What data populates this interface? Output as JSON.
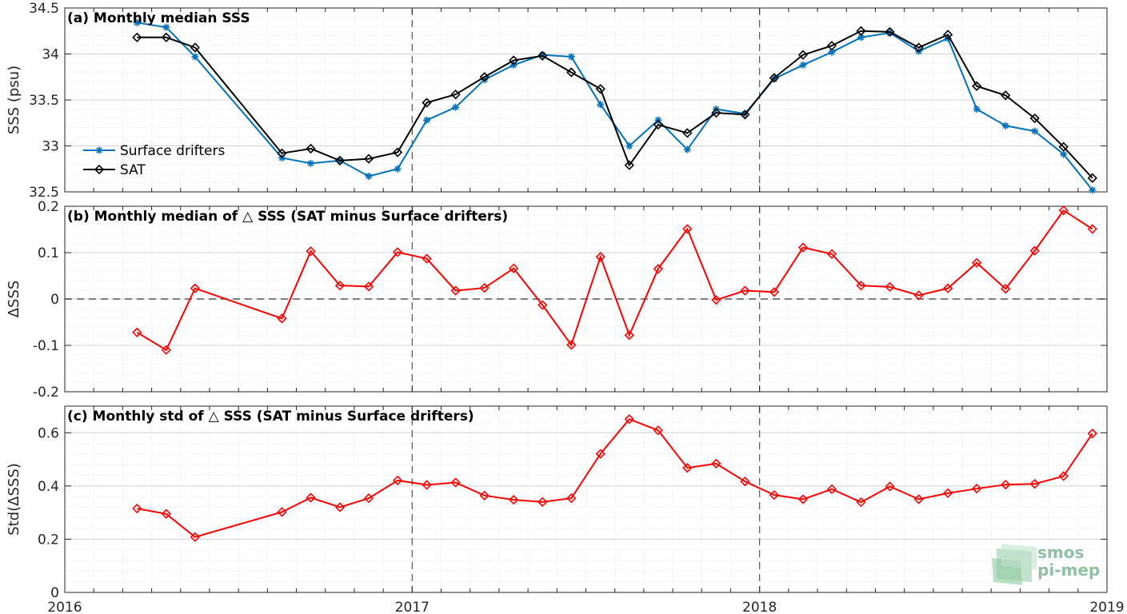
{
  "chart_data": [
    {
      "type": "line",
      "title": "(a) Monthly median SSS",
      "ylabel": "SSS (psu)",
      "xlim": [
        2016,
        2019
      ],
      "ylim": [
        32.5,
        34.5
      ],
      "yticks": [
        32.5,
        33,
        33.5,
        34,
        34.5
      ],
      "ytick_labels": [
        "32.5",
        "33",
        "33.5",
        "34",
        "34.5"
      ],
      "grid": true,
      "legend_position": "lower-left",
      "x": [
        2016.208,
        2016.292,
        2016.375,
        2016.625,
        2016.708,
        2016.792,
        2016.875,
        2016.958,
        2017.042,
        2017.125,
        2017.208,
        2017.292,
        2017.375,
        2017.458,
        2017.542,
        2017.625,
        2017.708,
        2017.792,
        2017.875,
        2017.958,
        2018.042,
        2018.125,
        2018.208,
        2018.292,
        2018.375,
        2018.458,
        2018.542,
        2018.625,
        2018.708,
        2018.792,
        2018.875,
        2018.958
      ],
      "series": [
        {
          "name": "Surface drifters",
          "color": "#0072bd",
          "marker": "star",
          "values": [
            34.34,
            34.29,
            33.97,
            32.87,
            32.81,
            32.84,
            32.67,
            32.75,
            33.28,
            33.42,
            33.72,
            33.88,
            33.99,
            33.97,
            33.45,
            33.0,
            33.28,
            32.96,
            33.4,
            33.35,
            33.73,
            33.88,
            34.02,
            34.18,
            34.23,
            34.03,
            34.17,
            33.4,
            33.22,
            33.16,
            32.91,
            32.52
          ]
        },
        {
          "name": "SAT",
          "color": "#000000",
          "marker": "diamond",
          "values": [
            34.18,
            34.18,
            34.07,
            32.92,
            32.97,
            32.84,
            32.86,
            32.93,
            33.47,
            33.56,
            33.75,
            33.93,
            33.98,
            33.8,
            33.62,
            32.79,
            33.23,
            33.14,
            33.36,
            33.34,
            33.74,
            33.99,
            34.09,
            34.25,
            34.24,
            34.07,
            34.21,
            33.65,
            33.55,
            33.3,
            32.99,
            32.65
          ]
        }
      ]
    },
    {
      "type": "line",
      "title": "(b) Monthly median of △ SSS (SAT minus Surface drifters)",
      "ylabel": "ΔSSS",
      "xlim": [
        2016,
        2019
      ],
      "ylim": [
        -0.2,
        0.2
      ],
      "yticks": [
        -0.2,
        -0.1,
        0,
        0.1,
        0.2
      ],
      "ytick_labels": [
        "-0.2",
        "-0.1",
        "0",
        "0.1",
        "0.2"
      ],
      "grid": true,
      "zero_line": true,
      "x": [
        2016.208,
        2016.292,
        2016.375,
        2016.625,
        2016.708,
        2016.792,
        2016.875,
        2016.958,
        2017.042,
        2017.125,
        2017.208,
        2017.292,
        2017.375,
        2017.458,
        2017.542,
        2017.625,
        2017.708,
        2017.792,
        2017.875,
        2017.958,
        2018.042,
        2018.125,
        2018.208,
        2018.292,
        2018.375,
        2018.458,
        2018.542,
        2018.625,
        2018.708,
        2018.792,
        2018.875,
        2018.958
      ],
      "series": [
        {
          "color": "#ff0000",
          "marker": "diamond",
          "values": [
            -0.072,
            -0.11,
            0.023,
            -0.042,
            0.103,
            0.029,
            0.027,
            0.101,
            0.087,
            0.018,
            0.024,
            0.066,
            -0.013,
            -0.099,
            0.091,
            -0.078,
            0.065,
            0.151,
            -0.002,
            0.018,
            0.015,
            0.111,
            0.097,
            0.029,
            0.026,
            0.008,
            0.023,
            0.078,
            0.022,
            0.104,
            0.191,
            0.151
          ]
        }
      ]
    },
    {
      "type": "line",
      "title": "(c) Monthly std of △ SSS (SAT minus Surface drifters)",
      "ylabel": "Std(ΔSSS)",
      "xlim": [
        2016,
        2019
      ],
      "ylim": [
        0,
        0.7
      ],
      "yticks": [
        0,
        0.2,
        0.4,
        0.6
      ],
      "ytick_labels": [
        "0",
        "0.2",
        "0.4",
        "0.6"
      ],
      "xticks": [
        2016,
        2017,
        2018,
        2019
      ],
      "xtick_labels": [
        "2016",
        "2017",
        "2018",
        "2019"
      ],
      "grid": true,
      "x": [
        2016.208,
        2016.292,
        2016.375,
        2016.625,
        2016.708,
        2016.792,
        2016.875,
        2016.958,
        2017.042,
        2017.125,
        2017.208,
        2017.292,
        2017.375,
        2017.458,
        2017.542,
        2017.625,
        2017.708,
        2017.792,
        2017.875,
        2017.958,
        2018.042,
        2018.125,
        2018.208,
        2018.292,
        2018.375,
        2018.458,
        2018.542,
        2018.625,
        2018.708,
        2018.792,
        2018.875,
        2018.958
      ],
      "series": [
        {
          "color": "#ff0000",
          "marker": "diamond",
          "values": [
            0.315,
            0.295,
            0.208,
            0.302,
            0.356,
            0.32,
            0.354,
            0.421,
            0.404,
            0.413,
            0.364,
            0.348,
            0.34,
            0.354,
            0.521,
            0.651,
            0.609,
            0.468,
            0.484,
            0.417,
            0.366,
            0.35,
            0.388,
            0.339,
            0.398,
            0.35,
            0.373,
            0.39,
            0.405,
            0.408,
            0.437,
            0.597
          ]
        }
      ]
    }
  ],
  "logo": {
    "line1": "smos",
    "line2": "pi-mep"
  }
}
